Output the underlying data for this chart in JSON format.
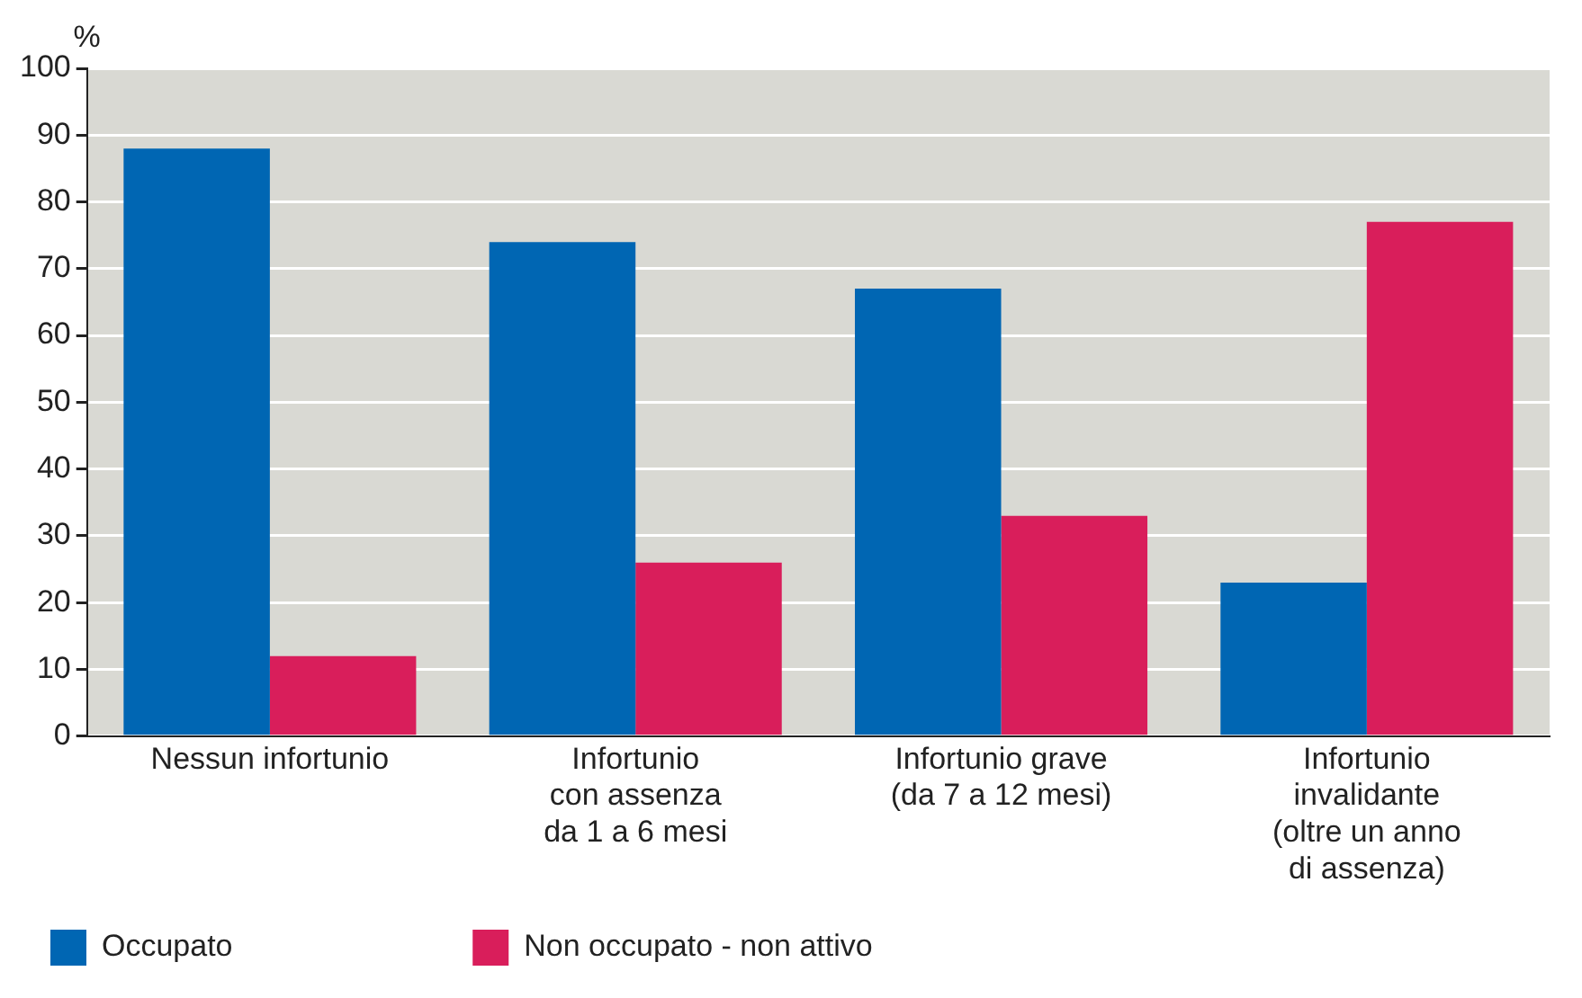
{
  "chart_data": {
    "type": "bar",
    "ylabel": "%",
    "categories": [
      "Nessun infortunio",
      "Infortunio\ncon assenza\nda 1 a 6 mesi",
      "Infortunio grave\n(da 7 a 12 mesi)",
      "Infortunio\ninvalidante\n(oltre un anno\ndi assenza)"
    ],
    "series": [
      {
        "name": "Occupato",
        "color": "#0066b3",
        "values": [
          88,
          74,
          67,
          23
        ]
      },
      {
        "name": "Non occupato - non attivo",
        "color": "#d91e5b",
        "values": [
          12,
          26,
          33,
          77
        ]
      }
    ],
    "ylim": [
      0,
      100
    ],
    "yticks": [
      0,
      10,
      20,
      30,
      40,
      50,
      60,
      70,
      80,
      90,
      100
    ],
    "grid": "y",
    "legend": "bottom left"
  }
}
